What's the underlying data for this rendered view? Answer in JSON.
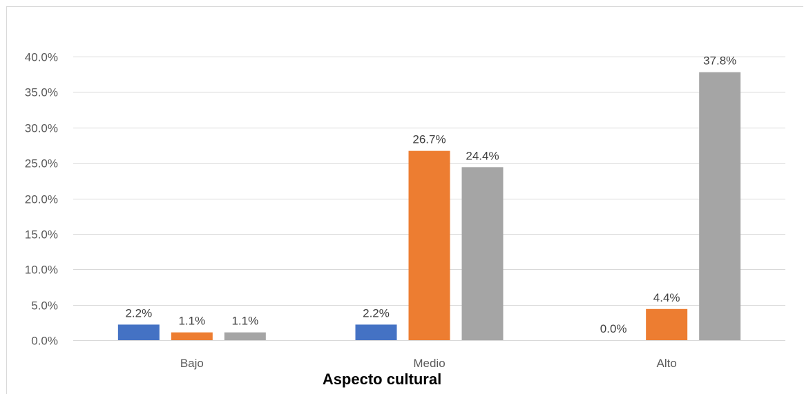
{
  "chart_data": {
    "type": "bar",
    "categories": [
      "Bajo",
      "Medio",
      "Alto"
    ],
    "series": [
      {
        "values": [
          2.2,
          2.2,
          0.0
        ],
        "color": "#4472c4"
      },
      {
        "values": [
          1.1,
          26.7,
          4.4
        ],
        "color": "#ed7d31"
      },
      {
        "values": [
          1.1,
          24.4,
          37.8
        ],
        "color": "#a5a5a5"
      }
    ],
    "data_labels": [
      [
        "2.2%",
        "2.2%",
        "0.0%"
      ],
      [
        "1.1%",
        "26.7%",
        "4.4%"
      ],
      [
        "1.1%",
        "24.4%",
        "37.8%"
      ]
    ],
    "yticks": [
      0,
      5,
      10,
      15,
      20,
      25,
      30,
      35,
      40
    ],
    "ytick_labels": [
      "0.0%",
      "5.0%",
      "10.0%",
      "15.0%",
      "20.0%",
      "25.0%",
      "30.0%",
      "35.0%",
      "40.0%"
    ],
    "ylim": [
      0,
      40
    ],
    "xlabel": "Aspecto cultural",
    "ylabel": "",
    "grid": true,
    "legend": "none"
  }
}
